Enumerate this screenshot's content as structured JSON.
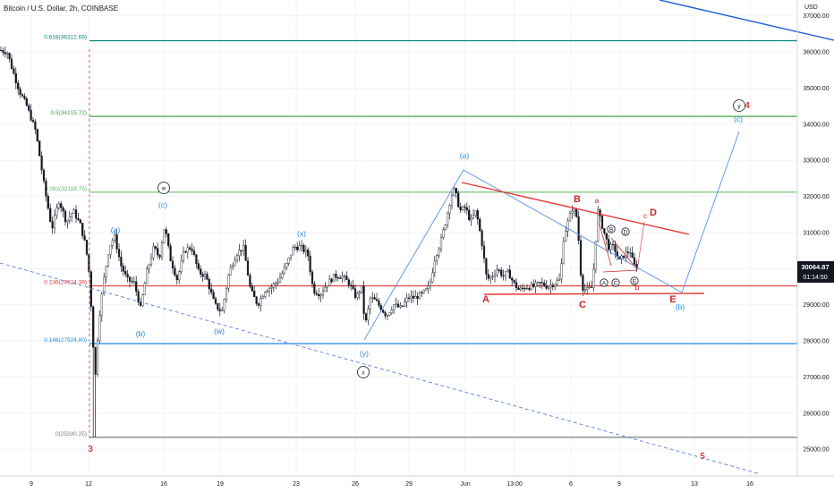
{
  "header": {
    "title": "Bitcoin / U.S. Dollar, 2h, COINBASE",
    "currency": "USD"
  },
  "price_tag": {
    "price": "30064.87",
    "countdown": "01:14:50"
  },
  "chart_data": {
    "type": "candlestick",
    "title": "Bitcoin / U.S. Dollar, 2h, COINBASE",
    "ylabel": "USD",
    "ylim": [
      24750,
      37250
    ],
    "x_ticks": [
      "9",
      "12",
      "16",
      "19",
      "23",
      "26",
      "29",
      "Jun",
      "13:00",
      "6",
      "9",
      "13",
      "16"
    ],
    "y_ticks": [
      "25000.00",
      "26000.00",
      "27000.00",
      "28000.00",
      "29000.00",
      "30000.00",
      "31000.00",
      "32000.00",
      "33000.00",
      "34000.00",
      "35000.00",
      "36000.00",
      "37000.00"
    ],
    "last_price": 30064.87,
    "fib_levels": [
      {
        "label": "0.618(36312.69)",
        "price": 36312.69,
        "color": "#00897b"
      },
      {
        "label": "0.5(34215.72)",
        "price": 34215.72,
        "color": "#43a047"
      },
      {
        "label": "0.382(32118.75)",
        "price": 32118.75,
        "color": "#66bb6a"
      },
      {
        "label": "0.236(29524.39)",
        "price": 29524.39,
        "color": "#e53935"
      },
      {
        "label": "0.146(27924.80)",
        "price": 27924.8,
        "color": "#1e88e5"
      },
      {
        "label": "0(25330.25)",
        "price": 25330.25,
        "color": "#787b86"
      }
    ],
    "wave_labels": [
      {
        "text": "3",
        "color": "#e53935"
      },
      {
        "text": "(a)",
        "color": "#1e88e5"
      },
      {
        "text": "(b)",
        "color": "#1e88e5"
      },
      {
        "text": "(c)",
        "color": "#1e88e5"
      },
      {
        "text": "w",
        "color": "#131722",
        "circled": true
      },
      {
        "text": "(w)",
        "color": "#1e88e5"
      },
      {
        "text": "(x)",
        "color": "#1e88e5"
      },
      {
        "text": "(y)",
        "color": "#1e88e5"
      },
      {
        "text": "x",
        "color": "#131722",
        "circled": true
      },
      {
        "text": "(a)",
        "color": "#1e88e5"
      },
      {
        "text": "A",
        "color": "#c62828"
      },
      {
        "text": "B",
        "color": "#c62828"
      },
      {
        "text": "C",
        "color": "#c62828"
      },
      {
        "text": "D",
        "color": "#c62828"
      },
      {
        "text": "E",
        "color": "#c62828"
      },
      {
        "text": "a",
        "color": "#c62828"
      },
      {
        "text": "b",
        "color": "#c62828"
      },
      {
        "text": "c",
        "color": "#c62828"
      },
      {
        "text": "B",
        "color": "#131722",
        "circled": true
      },
      {
        "text": "D",
        "color": "#131722",
        "circled": true
      },
      {
        "text": "A",
        "color": "#131722",
        "circled": true
      },
      {
        "text": "C",
        "color": "#131722",
        "circled": true
      },
      {
        "text": "E",
        "color": "#131722",
        "circled": true
      },
      {
        "text": "(b)",
        "color": "#1e88e5"
      },
      {
        "text": "(c)",
        "color": "#1e88e5"
      },
      {
        "text": "y",
        "color": "#131722",
        "circled": true
      },
      {
        "text": "4",
        "color": "#e53935"
      },
      {
        "text": "5",
        "color": "#e53935"
      }
    ]
  }
}
